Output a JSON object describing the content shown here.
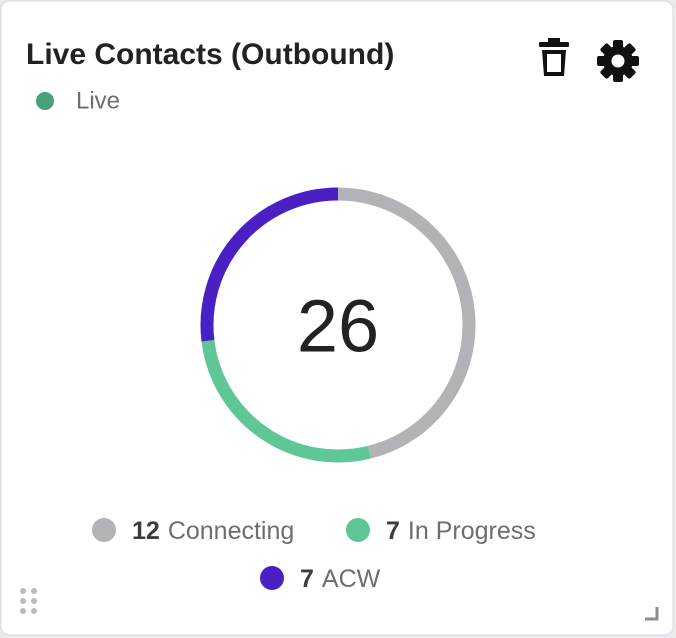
{
  "chart_data": {
    "type": "donut",
    "title": "Live Contacts (Outbound)",
    "status": "Live",
    "status_color": "#4aa077",
    "total": 26,
    "categories": [
      "Connecting",
      "In Progress",
      "ACW"
    ],
    "values": [
      12,
      7,
      7
    ],
    "colors": [
      "#b1b3b6",
      "#5ec795",
      "#4a1fc4"
    ]
  }
}
